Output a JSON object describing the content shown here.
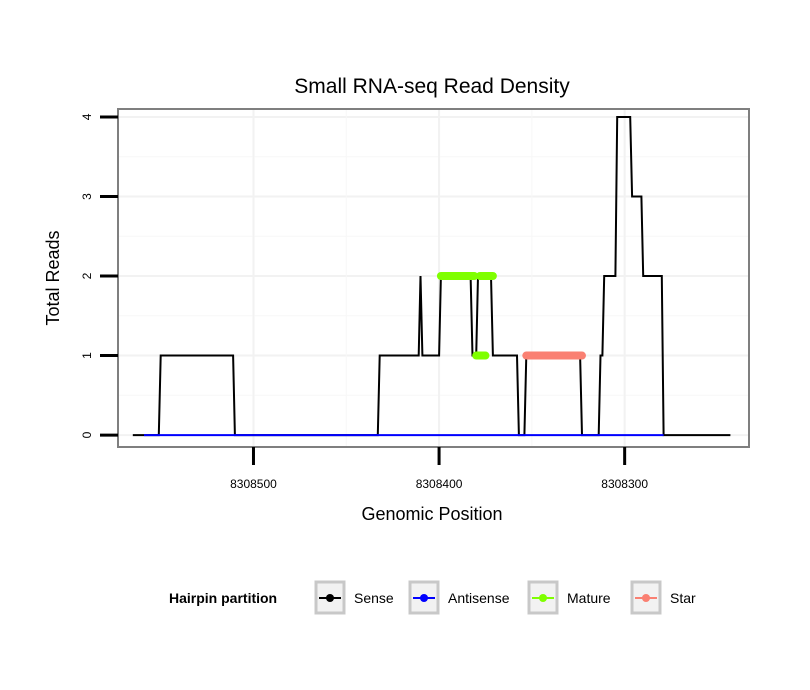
{
  "chart_data": {
    "type": "line",
    "title": "Small RNA-seq Read Density",
    "xlabel": "Genomic Position",
    "ylabel": "Total Reads",
    "x_reversed": true,
    "xlim": [
      8308573,
      8308233
    ],
    "ylim": [
      -0.15,
      4.1
    ],
    "x_ticks": [
      8308500,
      8308400,
      8308300
    ],
    "x_tick_labels": [
      "8308500",
      "8308400",
      "8308300"
    ],
    "y_ticks": [
      0,
      1,
      2,
      3,
      4
    ],
    "y_tick_labels": [
      "0",
      "1",
      "2",
      "3",
      "4"
    ],
    "grid": true,
    "legend": {
      "title": "Hairpin partition",
      "position": "bottom",
      "entries": [
        {
          "label": "Sense",
          "color": "#000000"
        },
        {
          "label": "Antisense",
          "color": "#0000ff"
        },
        {
          "label": "Mature",
          "color": "#7fff00"
        },
        {
          "label": "Star",
          "color": "#fa8072"
        }
      ]
    },
    "series": [
      {
        "name": "Sense",
        "color": "#000000",
        "style": "line",
        "points": [
          [
            8308565,
            0
          ],
          [
            8308551,
            0
          ],
          [
            8308550,
            1
          ],
          [
            8308511,
            1
          ],
          [
            8308510,
            0
          ],
          [
            8308433,
            0
          ],
          [
            8308432,
            1
          ],
          [
            8308411,
            1
          ],
          [
            8308410,
            2
          ],
          [
            8308409,
            1
          ],
          [
            8308400,
            1
          ],
          [
            8308399,
            2
          ],
          [
            8308383,
            2
          ],
          [
            8308382,
            1
          ],
          [
            8308380,
            1
          ],
          [
            8308379,
            2
          ],
          [
            8308372,
            2
          ],
          [
            8308371,
            1
          ],
          [
            8308358,
            1
          ],
          [
            8308357,
            0
          ],
          [
            8308354,
            0
          ],
          [
            8308353,
            1
          ],
          [
            8308324,
            1
          ],
          [
            8308323,
            0
          ],
          [
            8308314,
            0
          ],
          [
            8308313,
            1
          ],
          [
            8308312,
            1
          ],
          [
            8308311,
            2
          ],
          [
            8308305,
            2
          ],
          [
            8308304,
            4
          ],
          [
            8308297,
            4
          ],
          [
            8308296,
            3
          ],
          [
            8308291,
            3
          ],
          [
            8308290,
            2
          ],
          [
            8308280,
            2
          ],
          [
            8308279,
            0
          ],
          [
            8308243,
            0
          ]
        ]
      },
      {
        "name": "Antisense",
        "color": "#0000ff",
        "style": "line",
        "points": [
          [
            8308559,
            0
          ],
          [
            8308279,
            0
          ]
        ]
      },
      {
        "name": "Mature",
        "color": "#7fff00",
        "style": "segments",
        "segments": [
          {
            "x_start": 8308399,
            "x_end": 8308381,
            "y": 2
          },
          {
            "x_start": 8308380,
            "x_end": 8308375,
            "y": 1
          },
          {
            "x_start": 8308378,
            "x_end": 8308371,
            "y": 2
          }
        ]
      },
      {
        "name": "Star",
        "color": "#fa8072",
        "style": "segments",
        "segments": [
          {
            "x_start": 8308353,
            "x_end": 8308323,
            "y": 1
          }
        ]
      }
    ]
  }
}
